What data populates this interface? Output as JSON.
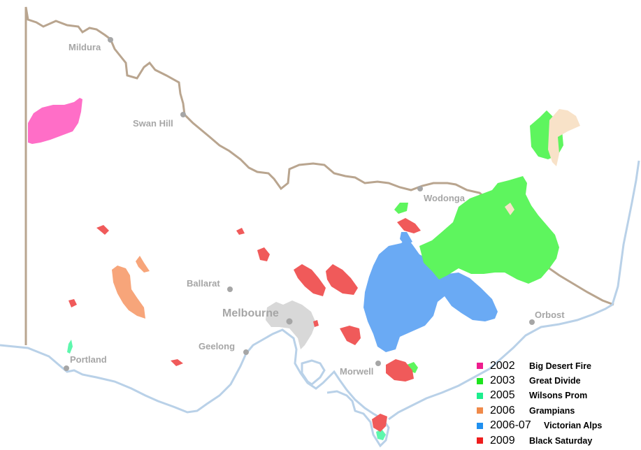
{
  "colors": {
    "state_border": "#b9a58f",
    "coast": "#b9d1e8",
    "city": "#a6a6a6",
    "melbourne_area": "#d8d8d8",
    "nsw_fire": "#f8e2c8"
  },
  "cities": [
    {
      "name": "Mildura",
      "size": "small"
    },
    {
      "name": "Swan Hill",
      "size": "small"
    },
    {
      "name": "Wodonga",
      "size": "small"
    },
    {
      "name": "Ballarat",
      "size": "small"
    },
    {
      "name": "Melbourne",
      "size": "large"
    },
    {
      "name": "Geelong",
      "size": "small"
    },
    {
      "name": "Orbost",
      "size": "small"
    },
    {
      "name": "Portland",
      "size": "small"
    },
    {
      "name": "Morwell",
      "size": "small"
    }
  ],
  "legend": [
    {
      "year": "2002",
      "name": "Big Desert Fire",
      "color": "#ee1d8e"
    },
    {
      "year": "2003",
      "name": "Great Divide",
      "color": "#1de31d"
    },
    {
      "year": "2005",
      "name": "Wilsons Prom",
      "color": "#1dee8e"
    },
    {
      "year": "2006",
      "name": "Grampians",
      "color": "#f08a4a"
    },
    {
      "year": "2006-07",
      "name": "Victorian Alps",
      "color": "#2090f0"
    },
    {
      "year": "2009",
      "name": "Black Saturday",
      "color": "#ee1d1d"
    }
  ],
  "fire_fills": {
    "big_desert": "#ff6ec7",
    "great_divide": "#5ef55e",
    "wilsons_prom": "#5ef7ad",
    "grampians": "#f7a57a",
    "victorian_alps": "#6aaaf4",
    "black_saturday": "#f05a5a"
  }
}
